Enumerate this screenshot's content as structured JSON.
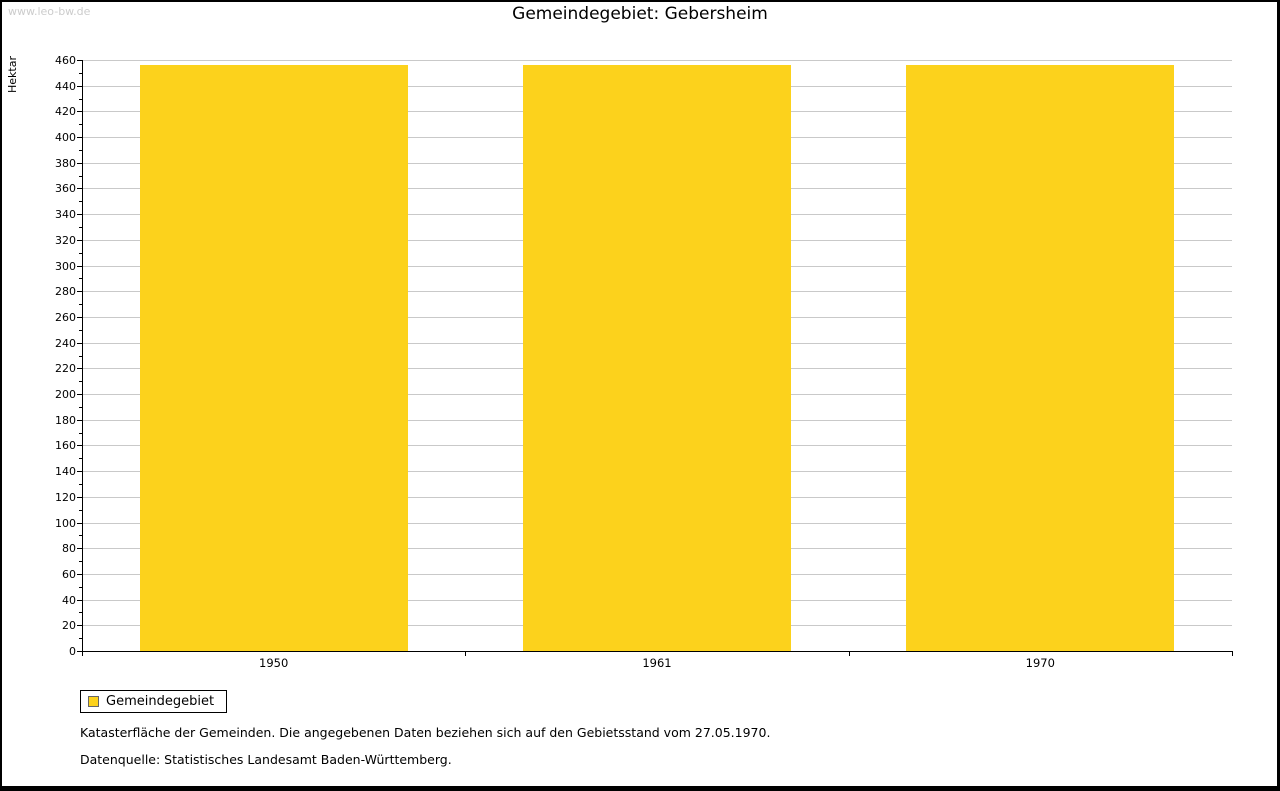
{
  "watermark": "www.leo-bw.de",
  "title": "Gemeindegebiet: Gebersheim",
  "chart_data": {
    "type": "bar",
    "title": "Gemeindegebiet: Gebersheim",
    "categories": [
      "1950",
      "1961",
      "1970"
    ],
    "series": [
      {
        "name": "Gemeindegebiet",
        "values": [
          456,
          456,
          456
        ]
      }
    ],
    "xlabel": "",
    "ylabel": "Hektar",
    "ylim": [
      0,
      460
    ],
    "ytick_step": 20,
    "ytick_minor_step": 10,
    "grid": true,
    "bar_color": "#FCD21C",
    "gridline_color": "#c9c9c9",
    "legend_position": "bottom-left"
  },
  "legend": {
    "items": [
      {
        "label": "Gemeindegebiet",
        "color": "#FCD21C"
      }
    ]
  },
  "footer": {
    "line1": "Katasterfläche der Gemeinden. Die angegebenen Daten beziehen sich auf den Gebietsstand vom 27.05.1970.",
    "line2": "Datenquelle: Statistisches Landesamt Baden-Württemberg."
  }
}
